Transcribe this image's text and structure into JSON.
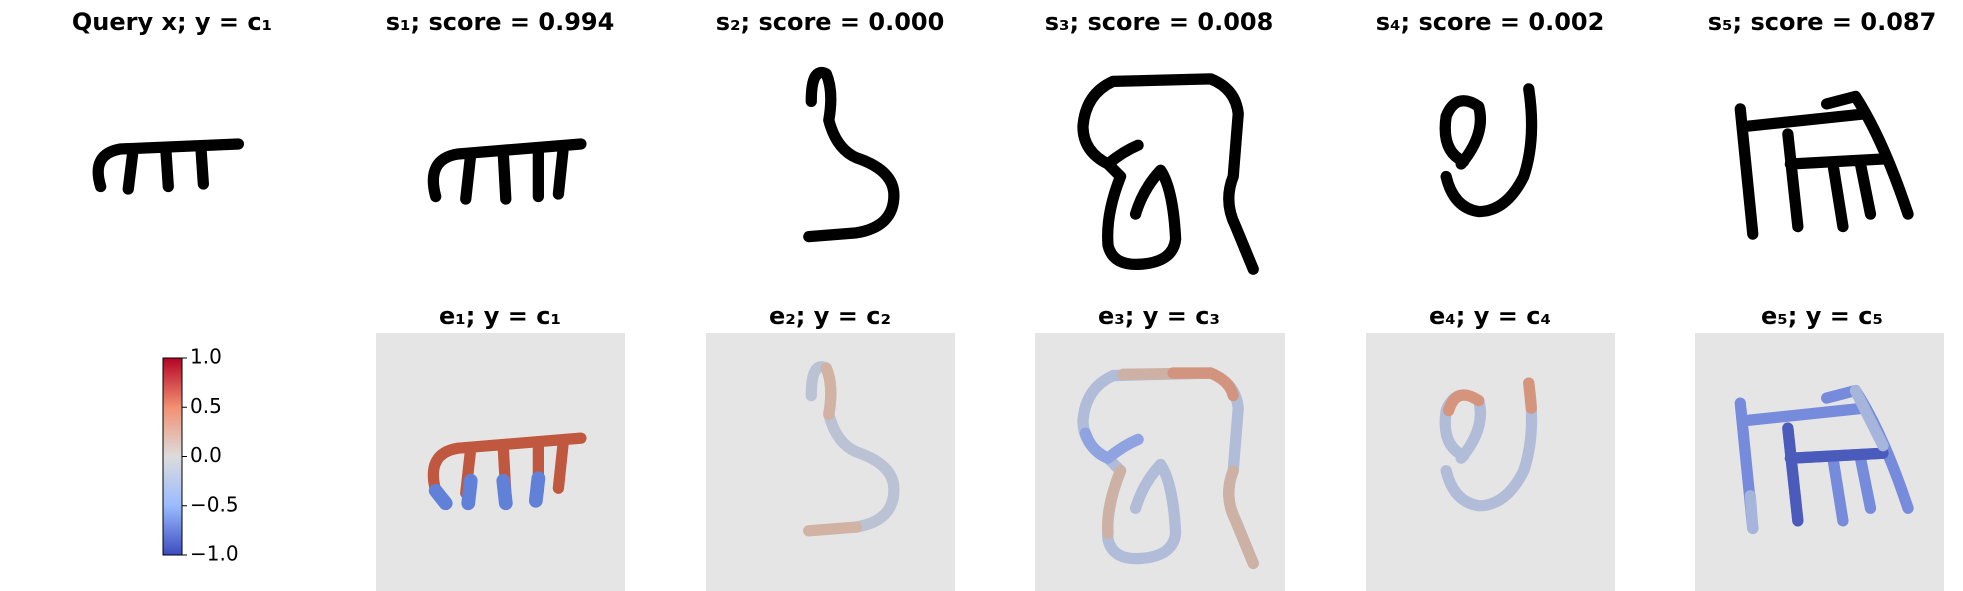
{
  "panels": [
    {
      "title": "Query x; y = c₁"
    },
    {
      "title": "s₁; score = 0.994"
    },
    {
      "title": "s₂; score = 0.000"
    },
    {
      "title": "s₃; score = 0.008"
    },
    {
      "title": "s₄; score = 0.002"
    },
    {
      "title": "s₅; score = 0.087"
    }
  ],
  "explanations": [
    {
      "title": "e₁; y = c₁"
    },
    {
      "title": "e₂; y = c₂"
    },
    {
      "title": "e₃; y = c₃"
    },
    {
      "title": "e₄; y = c₄"
    },
    {
      "title": "e₅; y = c₅"
    }
  ],
  "colorbar": {
    "lim": [
      -1,
      1
    ],
    "ticks": [
      {
        "value": 1,
        "label": "1.0"
      },
      {
        "value": 0.5,
        "label": "0.5"
      },
      {
        "value": 0,
        "label": "0.0"
      },
      {
        "value": -0.5,
        "label": "−0.5"
      },
      {
        "value": -1,
        "label": "−1.0"
      }
    ]
  }
}
